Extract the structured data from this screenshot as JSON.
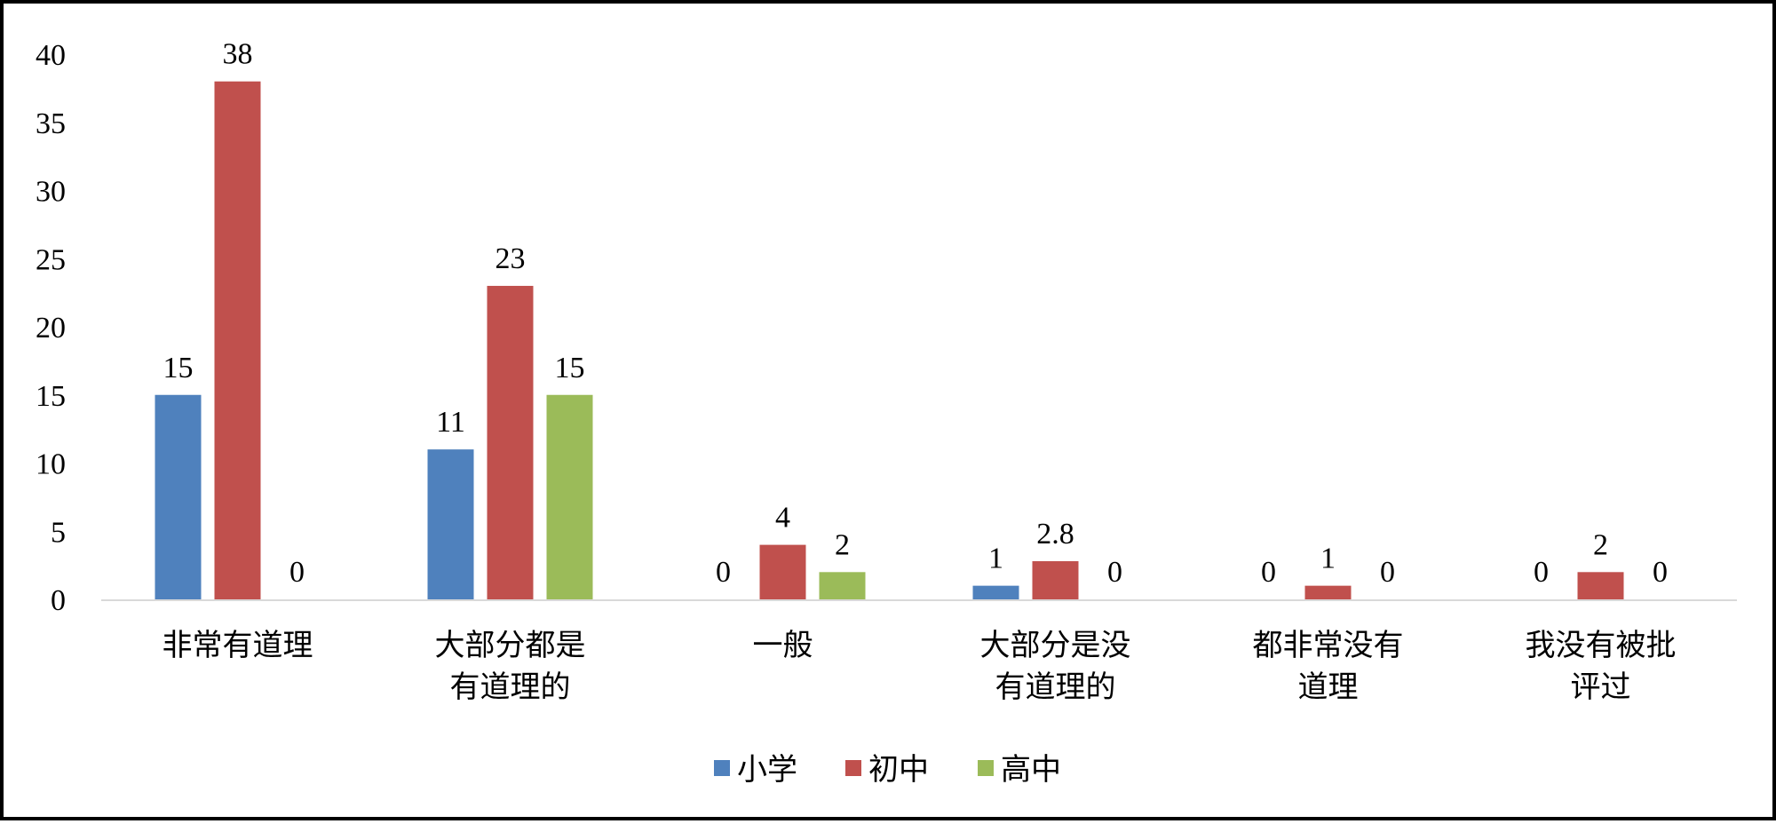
{
  "chart_data": {
    "type": "bar",
    "categories": [
      [
        "非常有道理"
      ],
      [
        "大部分都是",
        "有道理的"
      ],
      [
        "一般"
      ],
      [
        "大部分是没",
        "有道理的"
      ],
      [
        "都非常没有",
        "道理"
      ],
      [
        "我没有被批",
        "评过"
      ]
    ],
    "series": [
      {
        "name": "小学",
        "color": "#4f81bd",
        "values": [
          15,
          11,
          0,
          1,
          0,
          0
        ],
        "labels": [
          "15",
          "11",
          "0",
          "1",
          "0",
          "0"
        ]
      },
      {
        "name": "初中",
        "color": "#c0504d",
        "values": [
          38,
          23,
          4,
          2.8,
          1,
          2
        ],
        "labels": [
          "38",
          "23",
          "4",
          "2.8",
          "1",
          "2"
        ]
      },
      {
        "name": "高中",
        "color": "#9bbb59",
        "values": [
          0,
          15,
          2,
          0,
          0,
          0
        ],
        "labels": [
          "0",
          "15",
          "2",
          "0",
          "0",
          "0"
        ]
      }
    ],
    "ylim": [
      0,
      40
    ],
    "yticks": [
      "0",
      "5",
      "10",
      "15",
      "20",
      "25",
      "30",
      "35",
      "40"
    ],
    "ytick_values": [
      0,
      5,
      10,
      15,
      20,
      25,
      30,
      35,
      40
    ],
    "grid": false,
    "legend": "bottom",
    "axis_color": "#d9d9d9"
  }
}
